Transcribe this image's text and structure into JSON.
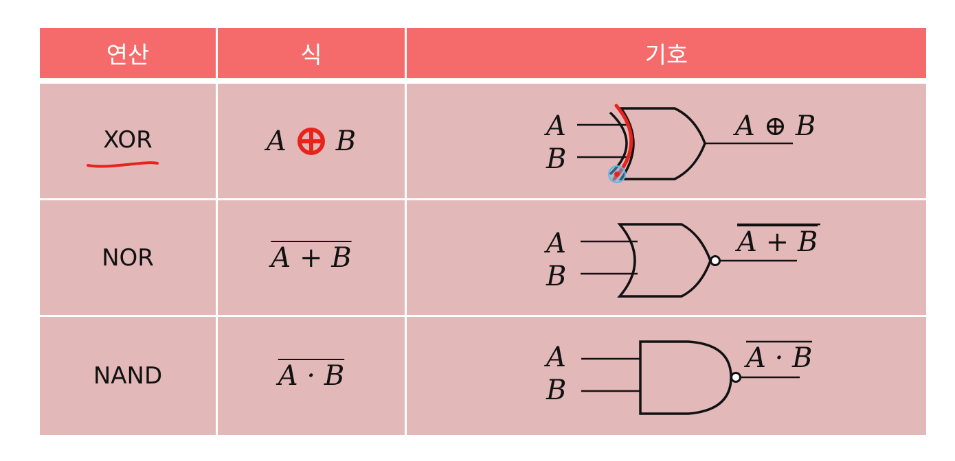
{
  "table": {
    "headers": [
      "연산",
      "식",
      "기호"
    ],
    "rows": [
      {
        "op": "XOR",
        "expr_a": "A",
        "expr_op": "⊕",
        "expr_b": "B",
        "sym_a": "A",
        "sym_b": "B",
        "sym_out": "A ⊕ B"
      },
      {
        "op": "NOR",
        "expr": "A + B",
        "sym_a": "A",
        "sym_b": "B",
        "sym_out": "A + B"
      },
      {
        "op": "NAND",
        "expr": "A · B",
        "sym_a": "A",
        "sym_b": "B",
        "sym_out": "A · B"
      }
    ]
  },
  "colors": {
    "header_bg": "#f56b6b",
    "row_bg": "#e3b8b8",
    "annotation": "#e8231c",
    "cursor": "#5fb8e8"
  }
}
